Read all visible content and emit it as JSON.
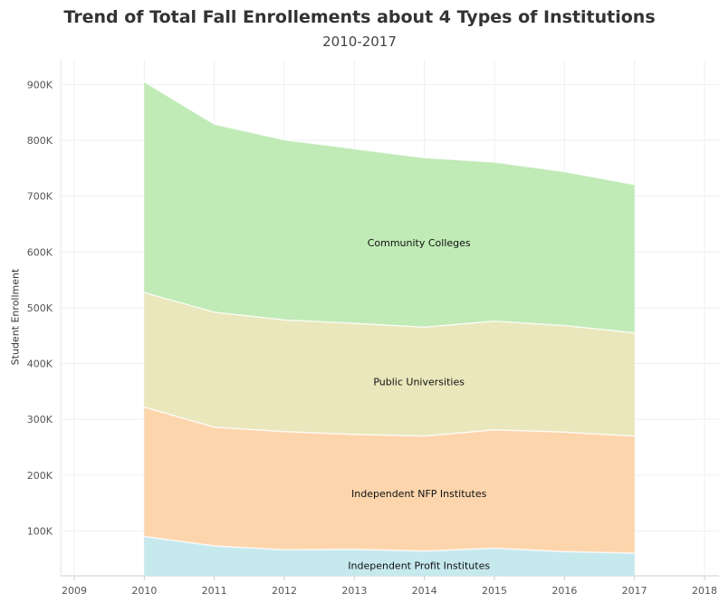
{
  "chart_data": {
    "type": "area",
    "stacked": true,
    "title": "Trend of Total Fall Enrollements about 4 Types of Institutions",
    "subtitle": "2010-2017",
    "xlabel": "",
    "ylabel": "Student Enrollment",
    "x": [
      2010,
      2011,
      2012,
      2013,
      2014,
      2015,
      2016,
      2017
    ],
    "x_ticks": [
      "2009",
      "2010",
      "2011",
      "2012",
      "2013",
      "2014",
      "2015",
      "2016",
      "2017",
      "2018"
    ],
    "xlim": [
      2009,
      2018
    ],
    "y_ticks": [
      "100K",
      "200K",
      "300K",
      "400K",
      "500K",
      "600K",
      "700K",
      "800K",
      "900K"
    ],
    "grid": true,
    "series": [
      {
        "name": "Independent Profit Institutes",
        "color": "#c6e9ee",
        "values": [
          90000,
          73000,
          66000,
          67000,
          64000,
          69000,
          63000,
          60000
        ]
      },
      {
        "name": "Independent NFP Institutes",
        "color": "#fdd5ad",
        "values": [
          232000,
          213000,
          212000,
          206000,
          206000,
          212000,
          214000,
          210000
        ]
      },
      {
        "name": "Public Universities",
        "color": "#e9e7bb",
        "values": [
          205000,
          206000,
          200000,
          199000,
          195000,
          195000,
          191000,
          185000
        ]
      },
      {
        "name": "Community Colleges",
        "color": "#c0eab6",
        "values": [
          378000,
          337000,
          323000,
          313000,
          304000,
          285000,
          276000,
          266000
        ]
      }
    ]
  }
}
